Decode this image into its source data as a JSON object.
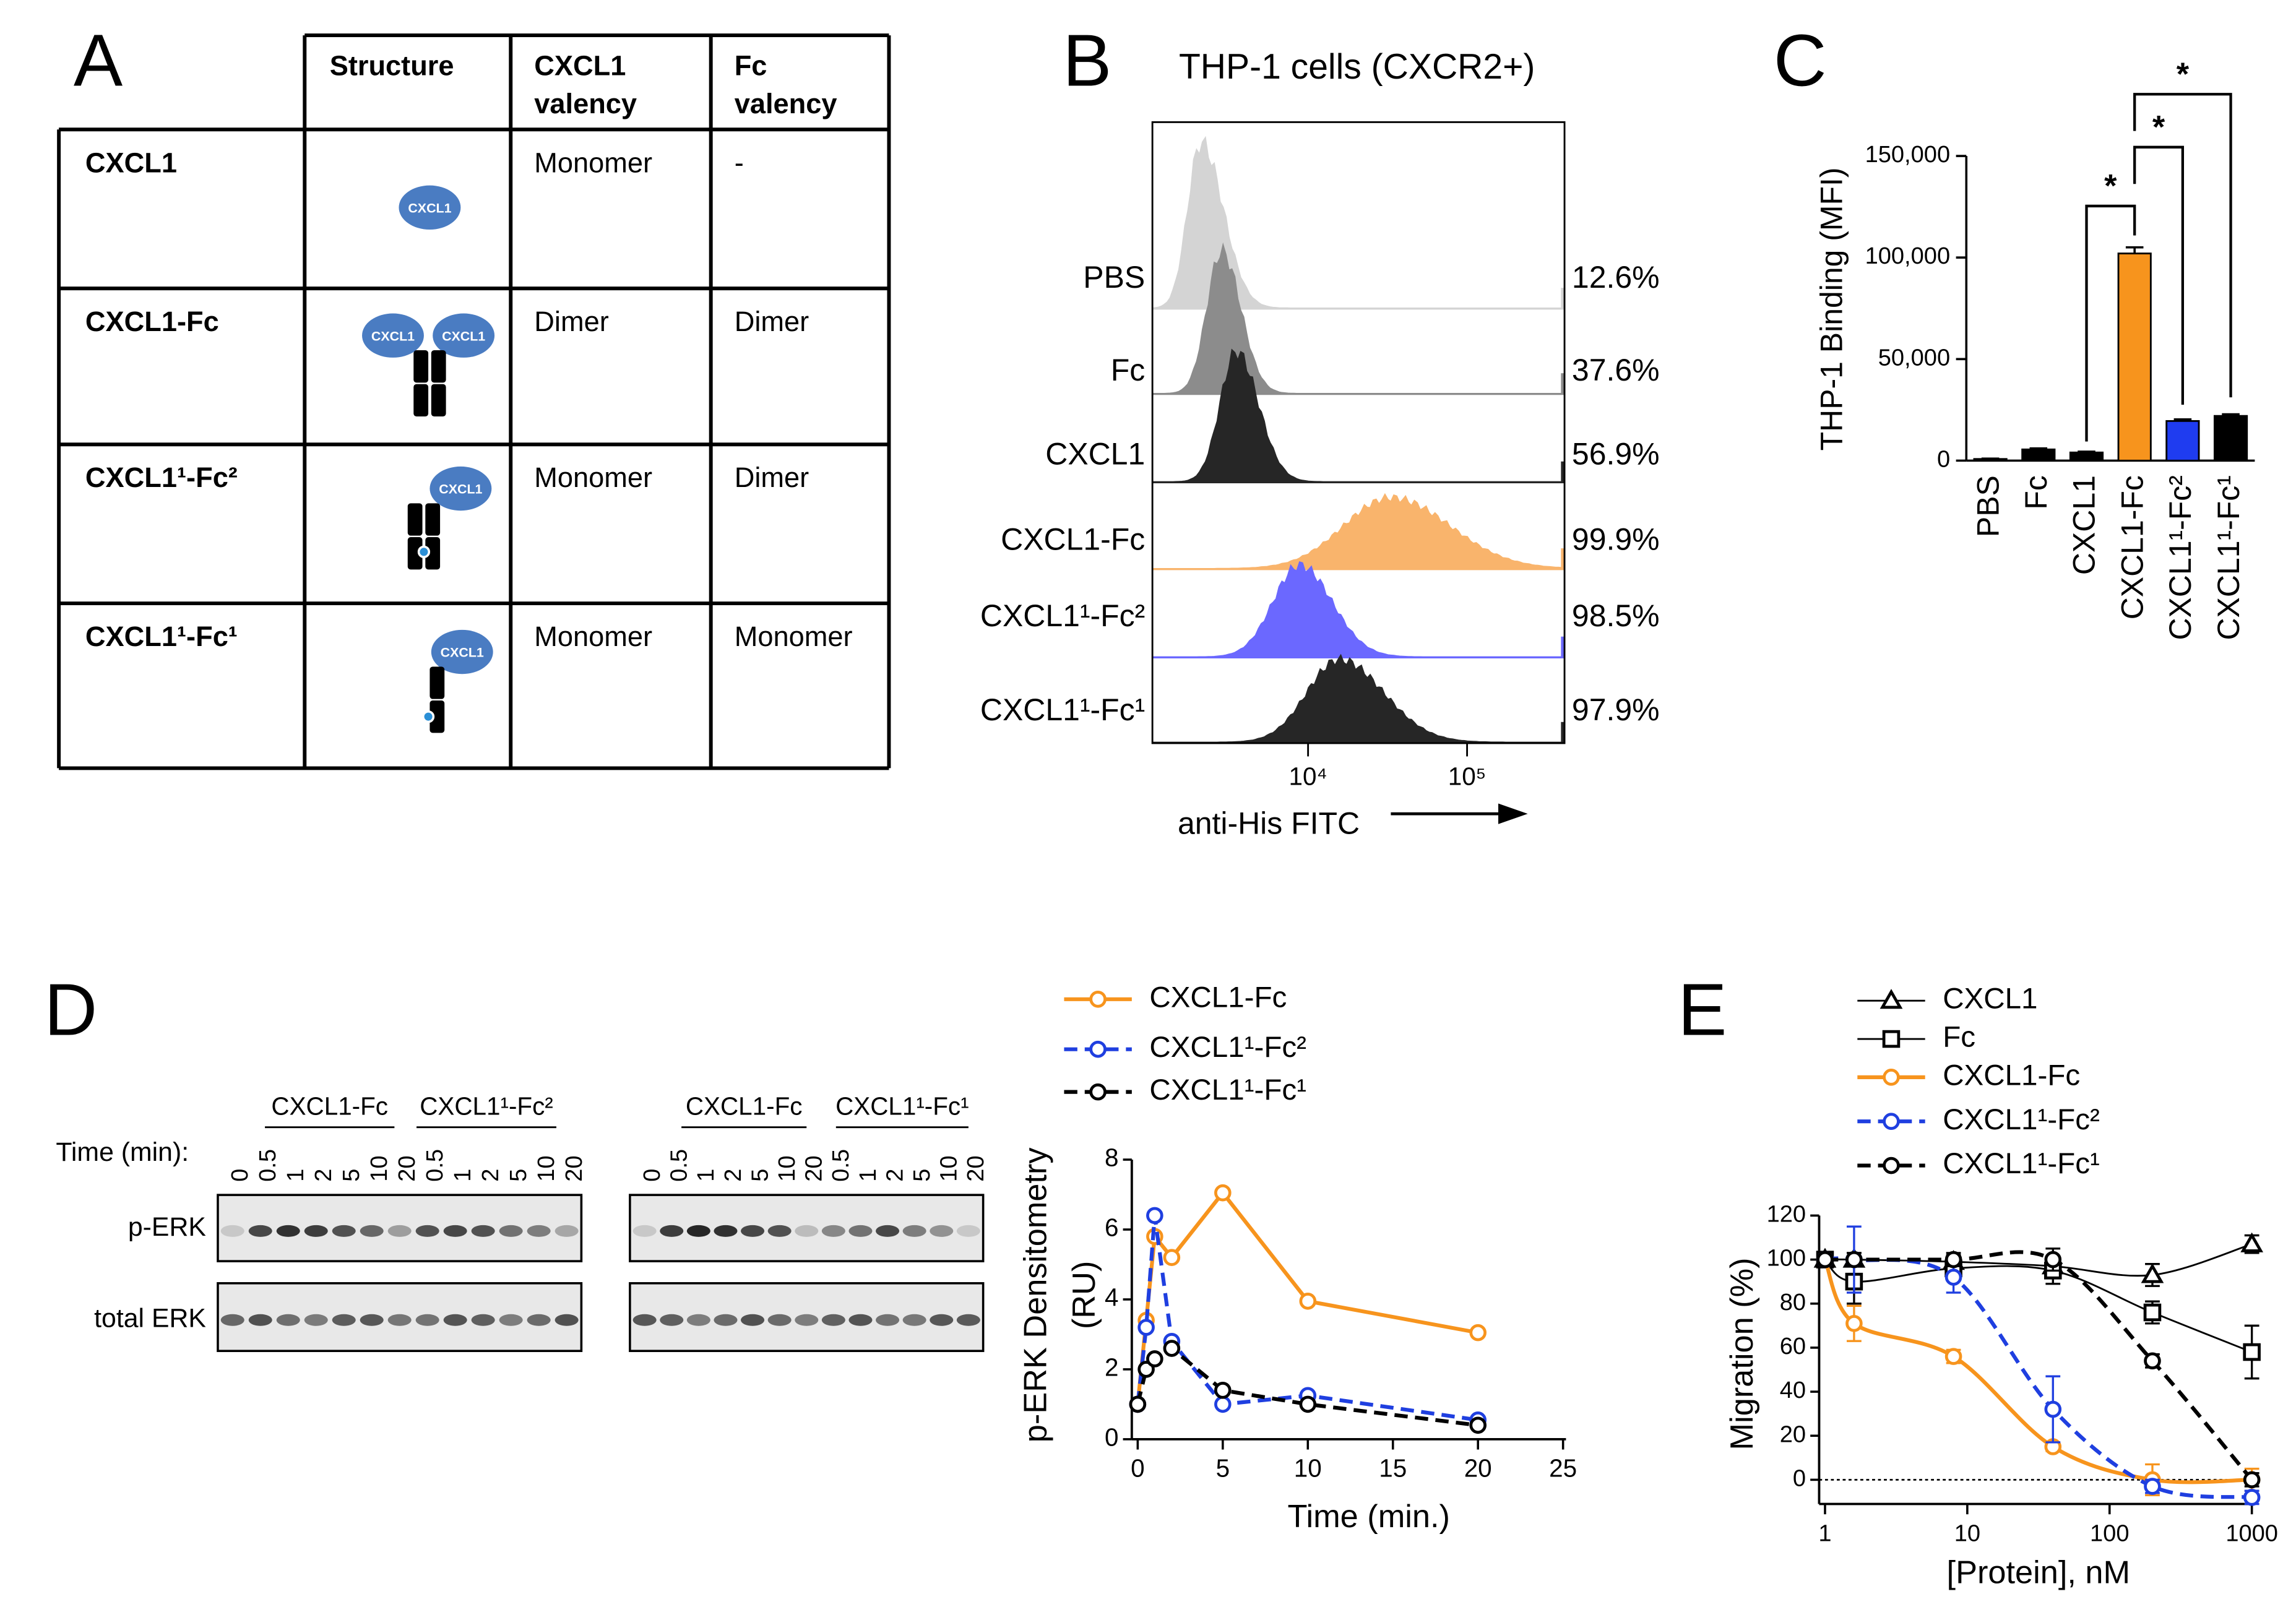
{
  "panel_labels": [
    "A",
    "B",
    "C",
    "D",
    "E"
  ],
  "table": {
    "header": [
      [
        "Structure"
      ],
      [
        "CXCL1",
        "valency"
      ],
      [
        "Fc",
        "valency"
      ]
    ],
    "icon_label": "CXCL1",
    "rows": [
      [
        "CXCL1",
        "Monomer",
        "-"
      ],
      [
        "CXCL1-Fc",
        "Dimer",
        "Dimer"
      ],
      [
        "CXCL1¹-Fc²",
        "Monomer",
        "Dimer"
      ],
      [
        "CXCL1¹-Fc¹",
        "Monomer",
        "Monomer"
      ]
    ]
  },
  "blots": {
    "time_label": "Time (min):",
    "rows": [
      "p-ERK",
      "total ERK"
    ],
    "panels": [
      {
        "groups": [
          "CXCL1-Fc",
          "CXCL1¹-Fc²"
        ],
        "lanes": [
          "0",
          "0.5",
          "1",
          "2",
          "5",
          "10",
          "20",
          "0.5",
          "1",
          "2",
          "5",
          "10",
          "20"
        ]
      },
      {
        "groups": [
          "CXCL1-Fc",
          "CXCL1¹-Fc¹"
        ],
        "lanes": [
          "0",
          "0.5",
          "1",
          "2",
          "5",
          "10",
          "20",
          "0.5",
          "1",
          "2",
          "5",
          "10",
          "20"
        ]
      }
    ]
  },
  "chart_data": [
    {
      "type": "histogram_overlay",
      "title": "THP-1 cells (CXCR2+)",
      "xlabel": "anti-His FITC",
      "log_x": true,
      "xlim": [
        1050,
        410000
      ],
      "xticks": [
        {
          "value": 10000,
          "label": "10⁴"
        },
        {
          "value": 100000,
          "label": "10⁵"
        }
      ],
      "categories": [
        "PBS",
        "Fc",
        "CXCL1",
        "CXCL1-Fc",
        "CXCL1¹-Fc²",
        "CXCL1¹-Fc¹"
      ],
      "values": [
        12.6,
        37.6,
        56.9,
        99.9,
        98.5,
        97.9
      ],
      "value_labels": [
        "12.6%",
        "37.6%",
        "56.9%",
        "99.9%",
        "98.5%",
        "97.9%"
      ],
      "colors": [
        "#d4d4d4",
        "#8c8c8c",
        "#262626",
        "#f9b46c",
        "#6b68ff",
        "#262626"
      ]
    },
    {
      "type": "bar",
      "ylabel": "THP-1 Binding (MFI)",
      "categories": [
        "PBS",
        "Fc",
        "CXCL1",
        "CXCL1-Fc",
        "CXCL1¹-Fc²",
        "CXCL1¹-Fc¹"
      ],
      "values": [
        800,
        5500,
        4000,
        102000,
        19500,
        22000
      ],
      "errors": [
        200,
        500,
        400,
        3000,
        800,
        800
      ],
      "colors": [
        "#000000",
        "#000000",
        "#000000",
        "#f7941d",
        "#1f3cf0",
        "#000000"
      ],
      "ylim": [
        0,
        150000
      ],
      "yticks": [
        0,
        {
          "value": 50000,
          "label": "50,000"
        },
        {
          "value": 100000,
          "label": "100,000"
        },
        {
          "value": 150000,
          "label": "150,000"
        }
      ],
      "annotations": [
        "*",
        "*",
        "*"
      ]
    },
    {
      "type": "line",
      "ylabel": [
        "p-ERK Densitometry",
        "(RU)"
      ],
      "xlabel": "Time (min.)",
      "x": [
        0,
        0.5,
        1,
        2,
        5,
        10,
        20
      ],
      "xlim": [
        0,
        25
      ],
      "xticks": [
        0,
        5,
        10,
        15,
        20,
        25
      ],
      "ylim": [
        0,
        8
      ],
      "yticks": [
        0,
        2,
        4,
        6,
        8
      ],
      "series": [
        {
          "name": "CXCL1-Fc",
          "color": "#f7941d",
          "dash": false,
          "marker": "circle",
          "line_weight": "thick",
          "values": [
            1.0,
            3.4,
            5.8,
            5.2,
            7.05,
            3.95,
            3.05
          ]
        },
        {
          "name": "CXCL1¹-Fc²",
          "color": "#1f3fe0",
          "dash": true,
          "marker": "circle",
          "line_weight": "thick",
          "values": [
            1.0,
            3.2,
            6.4,
            2.8,
            1.0,
            1.25,
            0.55
          ]
        },
        {
          "name": "CXCL1¹-Fc¹",
          "color": "#000000",
          "dash": true,
          "marker": "circle",
          "line_weight": "thick",
          "values": [
            1.0,
            2.0,
            2.3,
            2.6,
            1.4,
            1.0,
            0.4
          ]
        }
      ]
    },
    {
      "type": "line",
      "log_x": true,
      "smooth": true,
      "ylabel": "Migration (%)",
      "xlabel": "[Protein], nM",
      "x": [
        1,
        1.6,
        8,
        40,
        200,
        1000
      ],
      "xlim": [
        1,
        1000
      ],
      "xticks": [
        1,
        10,
        100,
        1000
      ],
      "ylim": [
        -11,
        120
      ],
      "yticks": [
        0,
        20,
        40,
        60,
        80,
        100,
        120
      ],
      "reference_line": 0,
      "series": [
        {
          "name": "CXCL1",
          "color": "#000000",
          "dash": false,
          "marker": "triangle",
          "line_weight": "thin",
          "values": [
            100,
            100,
            99,
            97,
            93,
            107
          ],
          "errors": [
            2,
            3,
            3,
            3,
            5,
            4
          ]
        },
        {
          "name": "Fc",
          "color": "#000000",
          "dash": false,
          "marker": "square",
          "line_weight": "thin",
          "values": [
            100,
            90,
            96,
            95,
            76,
            58
          ],
          "errors": [
            2,
            10,
            5,
            6,
            5,
            12
          ]
        },
        {
          "name": "CXCL1-Fc",
          "color": "#f7941d",
          "dash": false,
          "marker": "circle",
          "line_weight": "thick",
          "values": [
            100,
            71,
            56,
            15,
            0,
            0
          ],
          "errors": [
            2,
            8,
            3,
            2,
            7,
            5
          ]
        },
        {
          "name": "CXCL1¹-Fc²",
          "color": "#1f3fe0",
          "dash": true,
          "marker": "circle",
          "line_weight": "thick",
          "values": [
            100,
            100,
            92,
            32,
            -3,
            -8
          ],
          "errors": [
            2,
            15,
            7,
            15,
            3,
            3
          ]
        },
        {
          "name": "CXCL1¹-Fc¹",
          "color": "#000000",
          "dash": true,
          "marker": "circle",
          "line_weight": "thick",
          "values": [
            100,
            100,
            100,
            100,
            54,
            0
          ],
          "errors": [
            2,
            3,
            3,
            5,
            3,
            3
          ]
        }
      ]
    }
  ]
}
